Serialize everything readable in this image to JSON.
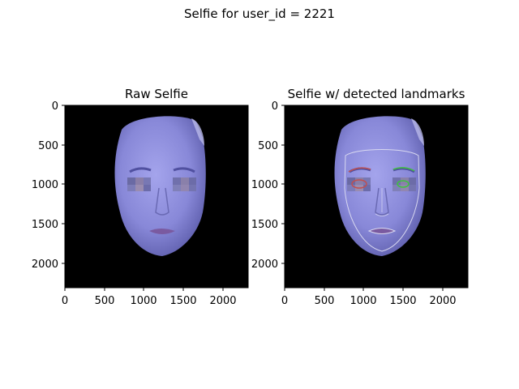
{
  "figure": {
    "suptitle": "Selfie for user_id = 2221"
  },
  "panels": [
    {
      "title": "Raw Selfie",
      "xticks": [
        "0",
        "500",
        "1000",
        "1500",
        "2000"
      ],
      "yticks": [
        "0",
        "500",
        "1000",
        "1500",
        "2000"
      ],
      "landmarks": false
    },
    {
      "title": "Selfie w/ detected landmarks",
      "xticks": [
        "0",
        "500",
        "1000",
        "1500",
        "2000"
      ],
      "yticks": [
        "0",
        "500",
        "1000",
        "1500",
        "2000"
      ],
      "landmarks": true
    }
  ],
  "colors": {
    "background": "#000000",
    "face": "#8f8fe0",
    "landmark_outline": "#d8d8f0",
    "left_eye_landmark": "#c05050",
    "right_eye_landmark": "#40c040"
  }
}
